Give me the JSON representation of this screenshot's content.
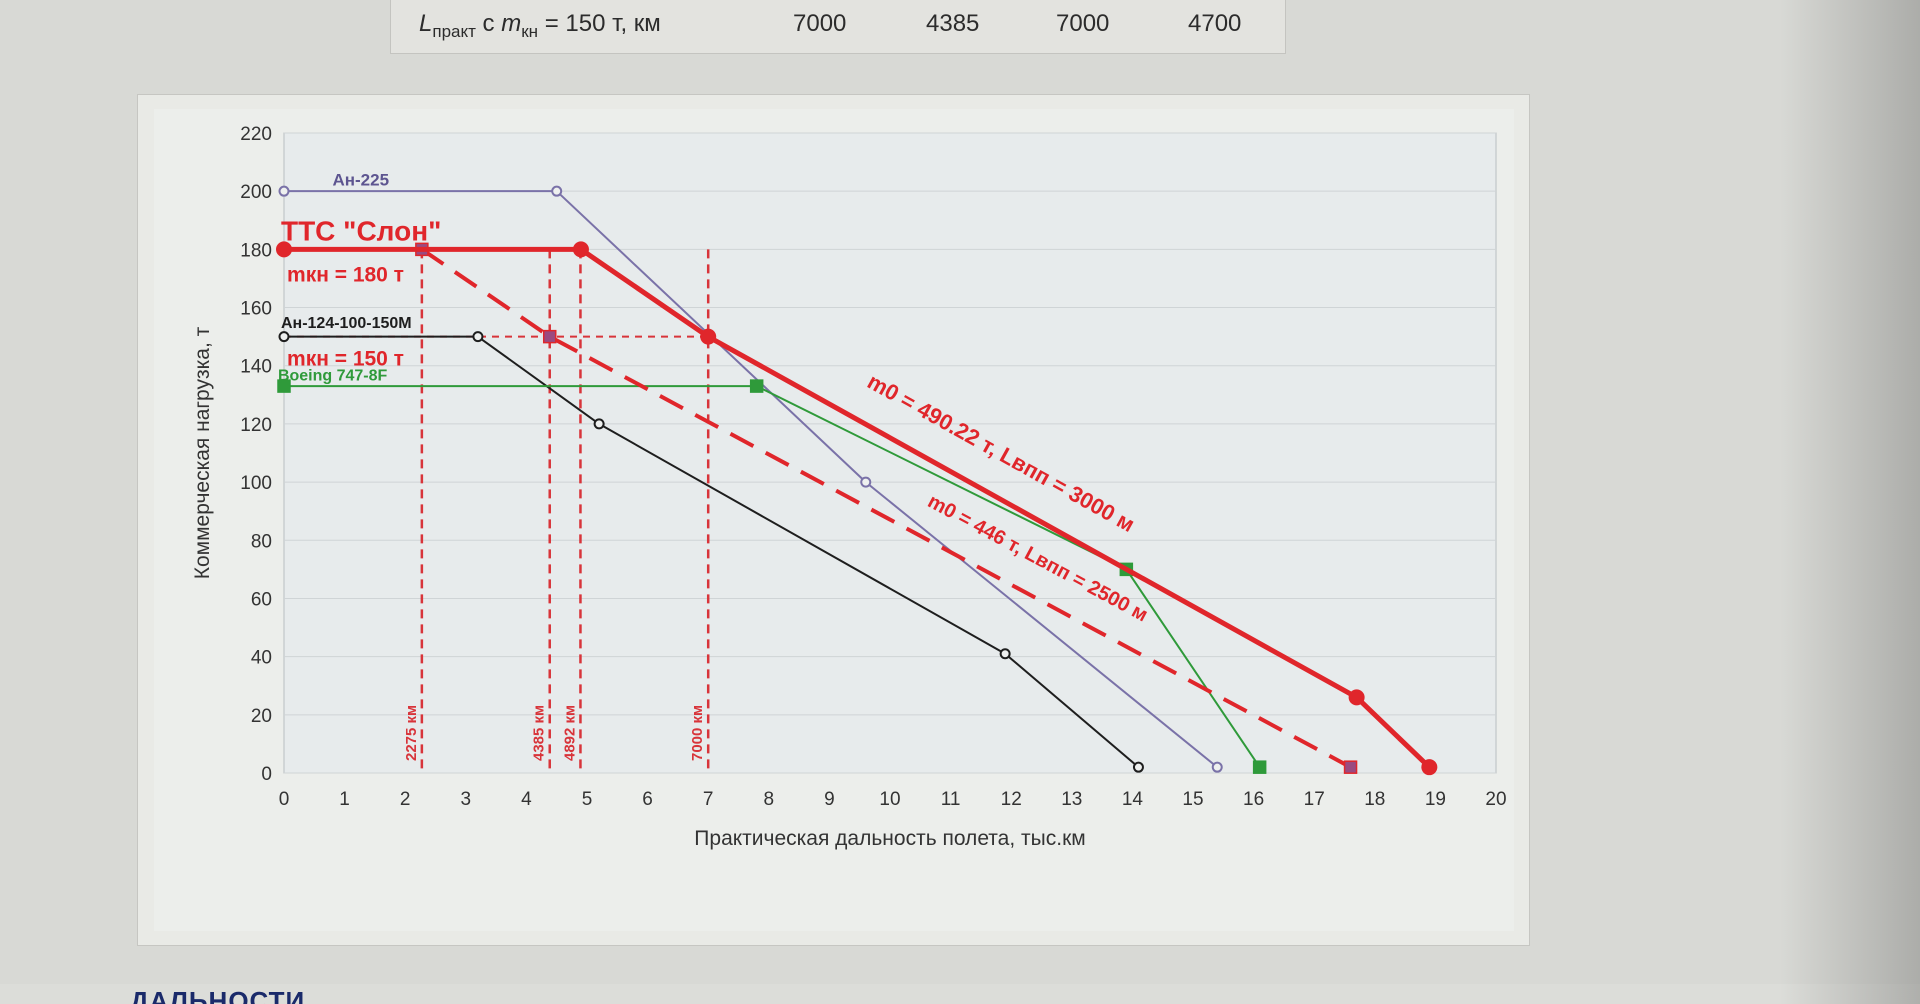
{
  "top_table": {
    "row_label": {
      "L": "L",
      "L_sub": "практ",
      "mid": " с ",
      "m": "m",
      "m_sub": "кн",
      "tail": " = 150 т, км"
    },
    "values": [
      "7000",
      "4385",
      "7000",
      "4700"
    ]
  },
  "bottom_text": "ДАЛЬНОСТИ",
  "colors": {
    "an225": "#7a72a8",
    "slon": "#e0262b",
    "an124": "#1e1e1e",
    "boeing": "#2f9a3a",
    "guide": "#d8343a",
    "grid": "#cfd4d6",
    "plot_bg": "#e7ebec"
  },
  "chart_data": {
    "type": "line",
    "xlabel": "Практическая дальность полета, тыс.км",
    "ylabel": "Коммерческая нагрузка, т",
    "xlim": [
      0,
      20
    ],
    "ylim": [
      0,
      220
    ],
    "xticks": [
      "0",
      "1",
      "2",
      "3",
      "4",
      "5",
      "6",
      "7",
      "8",
      "9",
      "10",
      "11",
      "12",
      "13",
      "14",
      "15",
      "16",
      "17",
      "18",
      "19",
      "20"
    ],
    "yticks": [
      "0",
      "20",
      "40",
      "60",
      "80",
      "100",
      "120",
      "140",
      "160",
      "180",
      "200",
      "220"
    ],
    "grid": "horizontal",
    "series": [
      {
        "key": "an225",
        "name": "Ан-225",
        "x": [
          0,
          4.5,
          9.6,
          15.4
        ],
        "y": [
          200,
          200,
          100,
          2
        ],
        "marker": "circle-open",
        "width": 2
      },
      {
        "key": "slon",
        "name": "ТТС \"Слон\"",
        "x": [
          0,
          4.9,
          7.0,
          17.7,
          18.9
        ],
        "y": [
          180,
          180,
          150,
          26,
          2
        ],
        "marker": "circle-filled",
        "width": 5
      },
      {
        "key": "slon_dashed",
        "x": [
          2.275,
          4.385,
          17.6
        ],
        "y": [
          180,
          150,
          2
        ],
        "marker": "square-filled",
        "width": 4,
        "dashed": true
      },
      {
        "key": "an124",
        "name": "Ан-124-100-150М",
        "x": [
          0,
          3.2,
          5.2,
          11.9,
          14.1
        ],
        "y": [
          150,
          150,
          120,
          41,
          2
        ],
        "marker": "circle-open",
        "width": 2
      },
      {
        "key": "boeing",
        "name": "Boeing 747-8F",
        "x": [
          0,
          7.8,
          13.9,
          16.1
        ],
        "y": [
          133,
          133,
          70,
          2
        ],
        "marker": "square-filled",
        "width": 2
      }
    ],
    "guides": {
      "vertical": [
        {
          "x": 2.275,
          "label": "2275 км"
        },
        {
          "x": 4.385,
          "label": "4385 км"
        },
        {
          "x": 4.892,
          "label": "4892 км"
        },
        {
          "x": 7.0,
          "label": "7000 км"
        }
      ],
      "horizontal_y": 150,
      "horizontal_to_x": 7.0
    },
    "annotations": {
      "slon_title": "ТТС \"Слон\"",
      "mkn180": "mкн = 180 т",
      "mkn150": "mкн = 150 т",
      "an124": "Ан-124-100-150М",
      "boeing": "Boeing 747-8F",
      "an225": "Ан-225",
      "solid_line": "m0 = 490.22 т, Lвпп = 3000 м",
      "dashed_line": "m0 = 446 т, Lвпп = 2500 м"
    }
  }
}
